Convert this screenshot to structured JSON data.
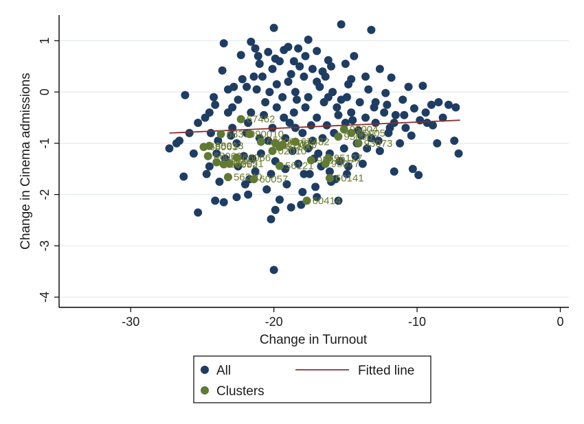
{
  "chart_data": {
    "type": "scatter",
    "title": "",
    "xlabel": "Change in Turnout",
    "ylabel": "Change in Cinema admissions",
    "xlim": [
      -35,
      0.6
    ],
    "ylim": [
      -4.2,
      1.5
    ],
    "x_ticks": [
      -30,
      -20,
      -10,
      0
    ],
    "y_ticks": [
      1,
      0,
      -1,
      -2,
      -3,
      -4
    ],
    "grid": "horizontal",
    "legend": {
      "placement": "bottom",
      "entries": [
        {
          "label": "All",
          "kind": "marker",
          "color": "#1f3d63"
        },
        {
          "label": "Fitted line",
          "kind": "line",
          "color": "#8b2e2e"
        },
        {
          "label": "Clusters",
          "kind": "marker",
          "color": "#5f7a34"
        }
      ]
    },
    "fitted_line": {
      "name": "Fitted line",
      "x": [
        -27.3,
        -7.0
      ],
      "y": [
        -0.8,
        -0.55
      ],
      "color": "#8b2e2e"
    },
    "series": [
      {
        "name": "All",
        "color": "#1f3d63",
        "points": [
          [
            -15.3,
            1.32
          ],
          [
            -13.2,
            1.21
          ],
          [
            -20.0,
            1.25
          ],
          [
            -17.6,
            1.02
          ],
          [
            -23.5,
            0.95
          ],
          [
            -21.6,
            0.98
          ],
          [
            -22.3,
            0.72
          ],
          [
            -19.0,
            0.88
          ],
          [
            -18.3,
            0.85
          ],
          [
            -14.4,
            0.7
          ],
          [
            -20.4,
            0.78
          ],
          [
            -23.6,
            0.42
          ],
          [
            -12.6,
            0.45
          ],
          [
            -16.2,
            0.62
          ],
          [
            -17.8,
            0.7
          ],
          [
            -19.6,
            0.6
          ],
          [
            -21.0,
            0.55
          ],
          [
            -15.0,
            0.55
          ],
          [
            -16.6,
            0.4
          ],
          [
            -18.8,
            0.35
          ],
          [
            -20.8,
            0.3
          ],
          [
            -22.2,
            0.25
          ],
          [
            -13.6,
            0.3
          ],
          [
            -11.8,
            0.28
          ],
          [
            -10.6,
            0.1
          ],
          [
            -9.6,
            0.12
          ],
          [
            -17.0,
            0.2
          ],
          [
            -14.8,
            0.15
          ],
          [
            -19.8,
            0.15
          ],
          [
            -21.9,
            0.1
          ],
          [
            -23.2,
            0.05
          ],
          [
            -26.2,
            -0.06
          ],
          [
            -24.2,
            -0.1
          ],
          [
            -12.2,
            -0.02
          ],
          [
            -11.0,
            -0.15
          ],
          [
            -10.2,
            -0.32
          ],
          [
            -8.5,
            -0.2
          ],
          [
            -7.8,
            -0.25
          ],
          [
            -7.3,
            -0.3
          ],
          [
            -9.0,
            -0.25
          ],
          [
            -9.8,
            -0.55
          ],
          [
            -10.8,
            -0.7
          ],
          [
            -11.6,
            -0.6
          ],
          [
            -9.3,
            -0.6
          ],
          [
            -8.2,
            -0.5
          ],
          [
            -8.6,
            -1.0
          ],
          [
            -7.4,
            -0.95
          ],
          [
            -7.1,
            -1.2
          ],
          [
            -10.4,
            -0.85
          ],
          [
            -12.0,
            -0.8
          ],
          [
            -11.6,
            -1.55
          ],
          [
            -10.3,
            -1.5
          ],
          [
            -9.9,
            -1.62
          ],
          [
            -26.3,
            -1.65
          ],
          [
            -25.3,
            -2.35
          ],
          [
            -24.1,
            -2.12
          ],
          [
            -23.5,
            -2.15
          ],
          [
            -22.6,
            -2.05
          ],
          [
            -22.0,
            -1.8
          ],
          [
            -20.2,
            -2.48
          ],
          [
            -19.9,
            -2.3
          ],
          [
            -18.8,
            -2.25
          ],
          [
            -18.1,
            -2.2
          ],
          [
            -15.5,
            -2.12
          ],
          [
            -17.0,
            -2.05
          ],
          [
            -20.0,
            -3.47
          ],
          [
            -27.3,
            -1.1
          ],
          [
            -26.6,
            -0.95
          ],
          [
            -25.9,
            -0.8
          ],
          [
            -25.3,
            -0.6
          ],
          [
            -24.8,
            -0.5
          ],
          [
            -24.4,
            -0.8
          ],
          [
            -23.9,
            -0.95
          ],
          [
            -22.9,
            -0.7
          ],
          [
            -21.6,
            -0.4
          ],
          [
            -20.6,
            -0.2
          ],
          [
            -19.4,
            -0.1
          ],
          [
            -18.5,
            0.0
          ],
          [
            -17.6,
            -0.1
          ],
          [
            -16.5,
            -0.2
          ],
          [
            -15.6,
            -0.3
          ],
          [
            -14.6,
            -0.4
          ],
          [
            -13.6,
            -0.5
          ],
          [
            -12.9,
            -0.6
          ],
          [
            -13.2,
            -0.9
          ],
          [
            -14.2,
            -1.0
          ],
          [
            -15.1,
            -1.1
          ],
          [
            -16.1,
            -1.2
          ],
          [
            -17.2,
            -1.3
          ],
          [
            -18.3,
            -1.4
          ],
          [
            -19.2,
            -1.5
          ],
          [
            -20.2,
            -1.6
          ],
          [
            -21.3,
            -1.55
          ],
          [
            -22.5,
            -1.45
          ],
          [
            -23.4,
            -1.3
          ],
          [
            -24.0,
            -1.2
          ],
          [
            -21.8,
            -0.6
          ],
          [
            -21.0,
            -0.9
          ],
          [
            -20.1,
            -0.7
          ],
          [
            -19.3,
            -0.5
          ],
          [
            -18.6,
            -0.4
          ],
          [
            -17.8,
            -0.3
          ],
          [
            -17.0,
            -0.5
          ],
          [
            -16.3,
            -0.65
          ],
          [
            -15.8,
            -0.8
          ],
          [
            -15.0,
            -0.6
          ],
          [
            -14.1,
            -0.75
          ],
          [
            -13.0,
            -0.3
          ],
          [
            -12.3,
            -0.4
          ],
          [
            -11.5,
            -0.45
          ],
          [
            -11.2,
            -1.0
          ],
          [
            -12.6,
            -1.15
          ],
          [
            -13.8,
            -1.4
          ],
          [
            -14.9,
            -1.6
          ],
          [
            -16.0,
            -1.75
          ],
          [
            -17.1,
            -1.85
          ],
          [
            -18.0,
            -1.95
          ],
          [
            -19.1,
            -1.8
          ],
          [
            -20.5,
            -1.9
          ],
          [
            -21.5,
            -1.3
          ],
          [
            -22.6,
            -1.0
          ],
          [
            -23.2,
            -0.4
          ],
          [
            -22.5,
            -0.15
          ],
          [
            -21.2,
            0.05
          ],
          [
            -20.3,
            0.0
          ],
          [
            -19.0,
            0.2
          ],
          [
            -17.9,
            0.3
          ],
          [
            -16.8,
            0.1
          ],
          [
            -15.9,
            0.0
          ],
          [
            -14.9,
            -0.1
          ],
          [
            -14.0,
            -0.2
          ],
          [
            -13.4,
            0.05
          ],
          [
            -16.4,
            0.3
          ],
          [
            -18.2,
            0.5
          ],
          [
            -20.1,
            0.45
          ],
          [
            -21.4,
            0.3
          ],
          [
            -22.8,
            0.1
          ],
          [
            -24.5,
            -0.4
          ],
          [
            -25.6,
            -1.2
          ],
          [
            -24.7,
            -1.6
          ],
          [
            -23.8,
            -1.75
          ],
          [
            -21.8,
            -2.0
          ],
          [
            -19.6,
            -2.1
          ],
          [
            -17.5,
            -1.6
          ],
          [
            -16.7,
            -1.45
          ],
          [
            -15.4,
            -1.35
          ],
          [
            -14.3,
            -1.25
          ],
          [
            -13.5,
            -1.1
          ],
          [
            -12.7,
            -0.95
          ],
          [
            -11.9,
            -0.7
          ],
          [
            -19.8,
            -0.3
          ],
          [
            -18.9,
            -0.6
          ],
          [
            -18.0,
            -0.8
          ],
          [
            -17.3,
            -0.95
          ],
          [
            -16.6,
            -0.9
          ],
          [
            -15.5,
            -0.45
          ],
          [
            -14.5,
            -0.55
          ],
          [
            -20.7,
            -0.45
          ],
          [
            -21.9,
            -0.8
          ],
          [
            -23.0,
            -0.85
          ],
          [
            -19.5,
            -1.05
          ],
          [
            -18.7,
            -1.15
          ],
          [
            -17.6,
            -1.1
          ],
          [
            -16.9,
            -1.2
          ],
          [
            -20.9,
            -1.2
          ],
          [
            -22.1,
            -1.25
          ],
          [
            -19.2,
            -0.9
          ],
          [
            -17.4,
            -0.65
          ],
          [
            -18.4,
            -0.15
          ],
          [
            -16.2,
            -0.1
          ],
          [
            -15.3,
            -0.15
          ],
          [
            -22.9,
            -0.3
          ],
          [
            -24.1,
            -0.25
          ],
          [
            -12.1,
            -0.25
          ],
          [
            -10.9,
            -0.45
          ],
          [
            -9.4,
            -0.4
          ],
          [
            -8.9,
            -0.65
          ],
          [
            -26.8,
            -1.0
          ],
          [
            -24.5,
            -1.45
          ],
          [
            -18.5,
            -0.7
          ],
          [
            -20.4,
            -0.95
          ],
          [
            -19.9,
            -1.35
          ],
          [
            -21.7,
            -1.7
          ],
          [
            -17.9,
            -1.6
          ],
          [
            -15.7,
            -1.7
          ],
          [
            -16.1,
            -1.55
          ],
          [
            -14.8,
            -1.45
          ],
          [
            -13.9,
            -0.85
          ],
          [
            -12.9,
            -0.2
          ],
          [
            -14.6,
            0.25
          ],
          [
            -16.0,
            0.5
          ],
          [
            -17.3,
            0.45
          ],
          [
            -18.6,
            0.6
          ],
          [
            -19.9,
            0.65
          ],
          [
            -21.1,
            0.7
          ],
          [
            -21.3,
            0.85
          ],
          [
            -19.3,
            0.82
          ],
          [
            -17.0,
            0.8
          ]
        ]
      },
      {
        "name": "Clusters",
        "color": "#5f7a34",
        "points": [
          [
            -22.3,
            -0.53,
            "67462"
          ],
          [
            -23.7,
            -0.82,
            "68370"
          ],
          [
            -21.7,
            -0.82,
            "90010"
          ],
          [
            -24.9,
            -1.07,
            "68063"
          ],
          [
            -24.5,
            -1.05,
            "68013"
          ],
          [
            -20.9,
            -0.97,
            "68000"
          ],
          [
            -18.5,
            -0.97,
            "67482"
          ],
          [
            -19.9,
            -1.0,
            "02700"
          ],
          [
            -19.4,
            -1.03,
            "25013"
          ],
          [
            -19.6,
            -1.07,
            "67100"
          ],
          [
            -20.1,
            -1.15,
            "02010"
          ],
          [
            -15.1,
            -0.73,
            "95004"
          ],
          [
            -14.6,
            -0.8,
            "95005"
          ],
          [
            -15.5,
            -0.87,
            "95006"
          ],
          [
            -14.1,
            -1.0,
            "93073"
          ],
          [
            -24.6,
            -1.25,
            "68069"
          ],
          [
            -22.6,
            -1.28,
            "66066"
          ],
          [
            -24.0,
            -1.37,
            "68084"
          ],
          [
            -23.1,
            -1.4,
            "68051"
          ],
          [
            -23.5,
            -1.41,
            "68052"
          ],
          [
            -16.2,
            -1.29,
            "95127"
          ],
          [
            -17.4,
            -1.33,
            "95076"
          ],
          [
            -16.4,
            -1.4,
            "95077"
          ],
          [
            -19.6,
            -1.44,
            "56121"
          ],
          [
            -23.2,
            -1.66,
            "56240"
          ],
          [
            -21.4,
            -1.7,
            "60057"
          ],
          [
            -16.1,
            -1.68,
            "60141"
          ],
          [
            -17.7,
            -2.12,
            "60414"
          ]
        ]
      }
    ]
  }
}
